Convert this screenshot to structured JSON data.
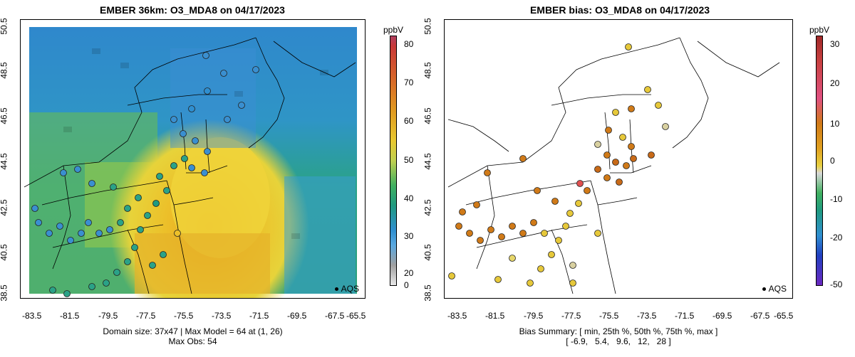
{
  "left_panel": {
    "title": "EMBER 36km: O3_MDA8 on 04/17/2023",
    "unit": "ppbV",
    "colorbar_ticks": [
      "80",
      "70",
      "60",
      "50",
      "40",
      "30",
      "20",
      "0"
    ],
    "legend_label": "AQS",
    "caption_line1": "Domain size: 37x47 | Max Model = 64 at (1, 26)",
    "caption_line2": "Max Obs: 54"
  },
  "right_panel": {
    "title": "EMBER bias: O3_MDA8 on 04/17/2023",
    "unit": "ppbV",
    "colorbar_ticks": [
      "30",
      "20",
      "10",
      "0",
      "-10",
      "-20",
      "-50"
    ],
    "legend_label": "AQS",
    "caption_line1": "Bias Summary: [ min, 25th %, 50th %, 75th %, max ]",
    "caption_line2": "[ -6.9,   5.4,   9.6,   12,   28 ]"
  },
  "axes": {
    "lat_ticks": [
      "50.5",
      "48.5",
      "46.5",
      "44.5",
      "42.5",
      "40.5",
      "38.5"
    ],
    "lon_ticks": [
      "-83.5",
      "-81.5",
      "-79.5",
      "-77.5",
      "-75.5",
      "-73.5",
      "-71.5",
      "-69.5",
      "-67.5",
      "-65.5"
    ]
  },
  "colors": {
    "model_low": "#2f8fd0",
    "model_mid": "#22a07a",
    "model_high": "#f0d130",
    "model_peak": "#e5a520",
    "bias_pos": "#d07a18",
    "bias_mid": "#e6d040"
  }
}
